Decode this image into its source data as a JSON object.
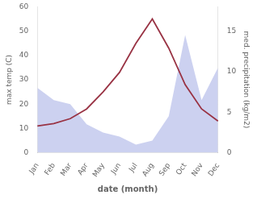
{
  "chart_data": {
    "type": "line",
    "categories": [
      "Jan",
      "Feb",
      "Mar",
      "Apr",
      "May",
      "Jun",
      "Jul",
      "Aug",
      "Sep",
      "Oct",
      "Nov",
      "Dec"
    ],
    "xlabel": "date (month)",
    "ylabel": "max temp (C)",
    "y2label": "med. precipitation (kg/m2)",
    "series": [
      {
        "type": "area",
        "color": "#b0b8e8",
        "axis": "y2",
        "values": [
          8.0,
          6.5,
          6.0,
          3.5,
          2.5,
          2.0,
          1.0,
          1.5,
          4.5,
          14.5,
          6.5,
          10.5
        ]
      },
      {
        "type": "line",
        "color": "#993344",
        "values": [
          11,
          12,
          14,
          18,
          25,
          33,
          45,
          55,
          43,
          28,
          18,
          13
        ]
      }
    ],
    "ylim": [
      0,
      60
    ],
    "yticks": [
      0,
      10,
      20,
      30,
      40,
      50,
      60
    ],
    "y2lim": [
      0,
      18
    ],
    "y2ticks": [
      0,
      5,
      10,
      15
    ],
    "grid": false
  }
}
